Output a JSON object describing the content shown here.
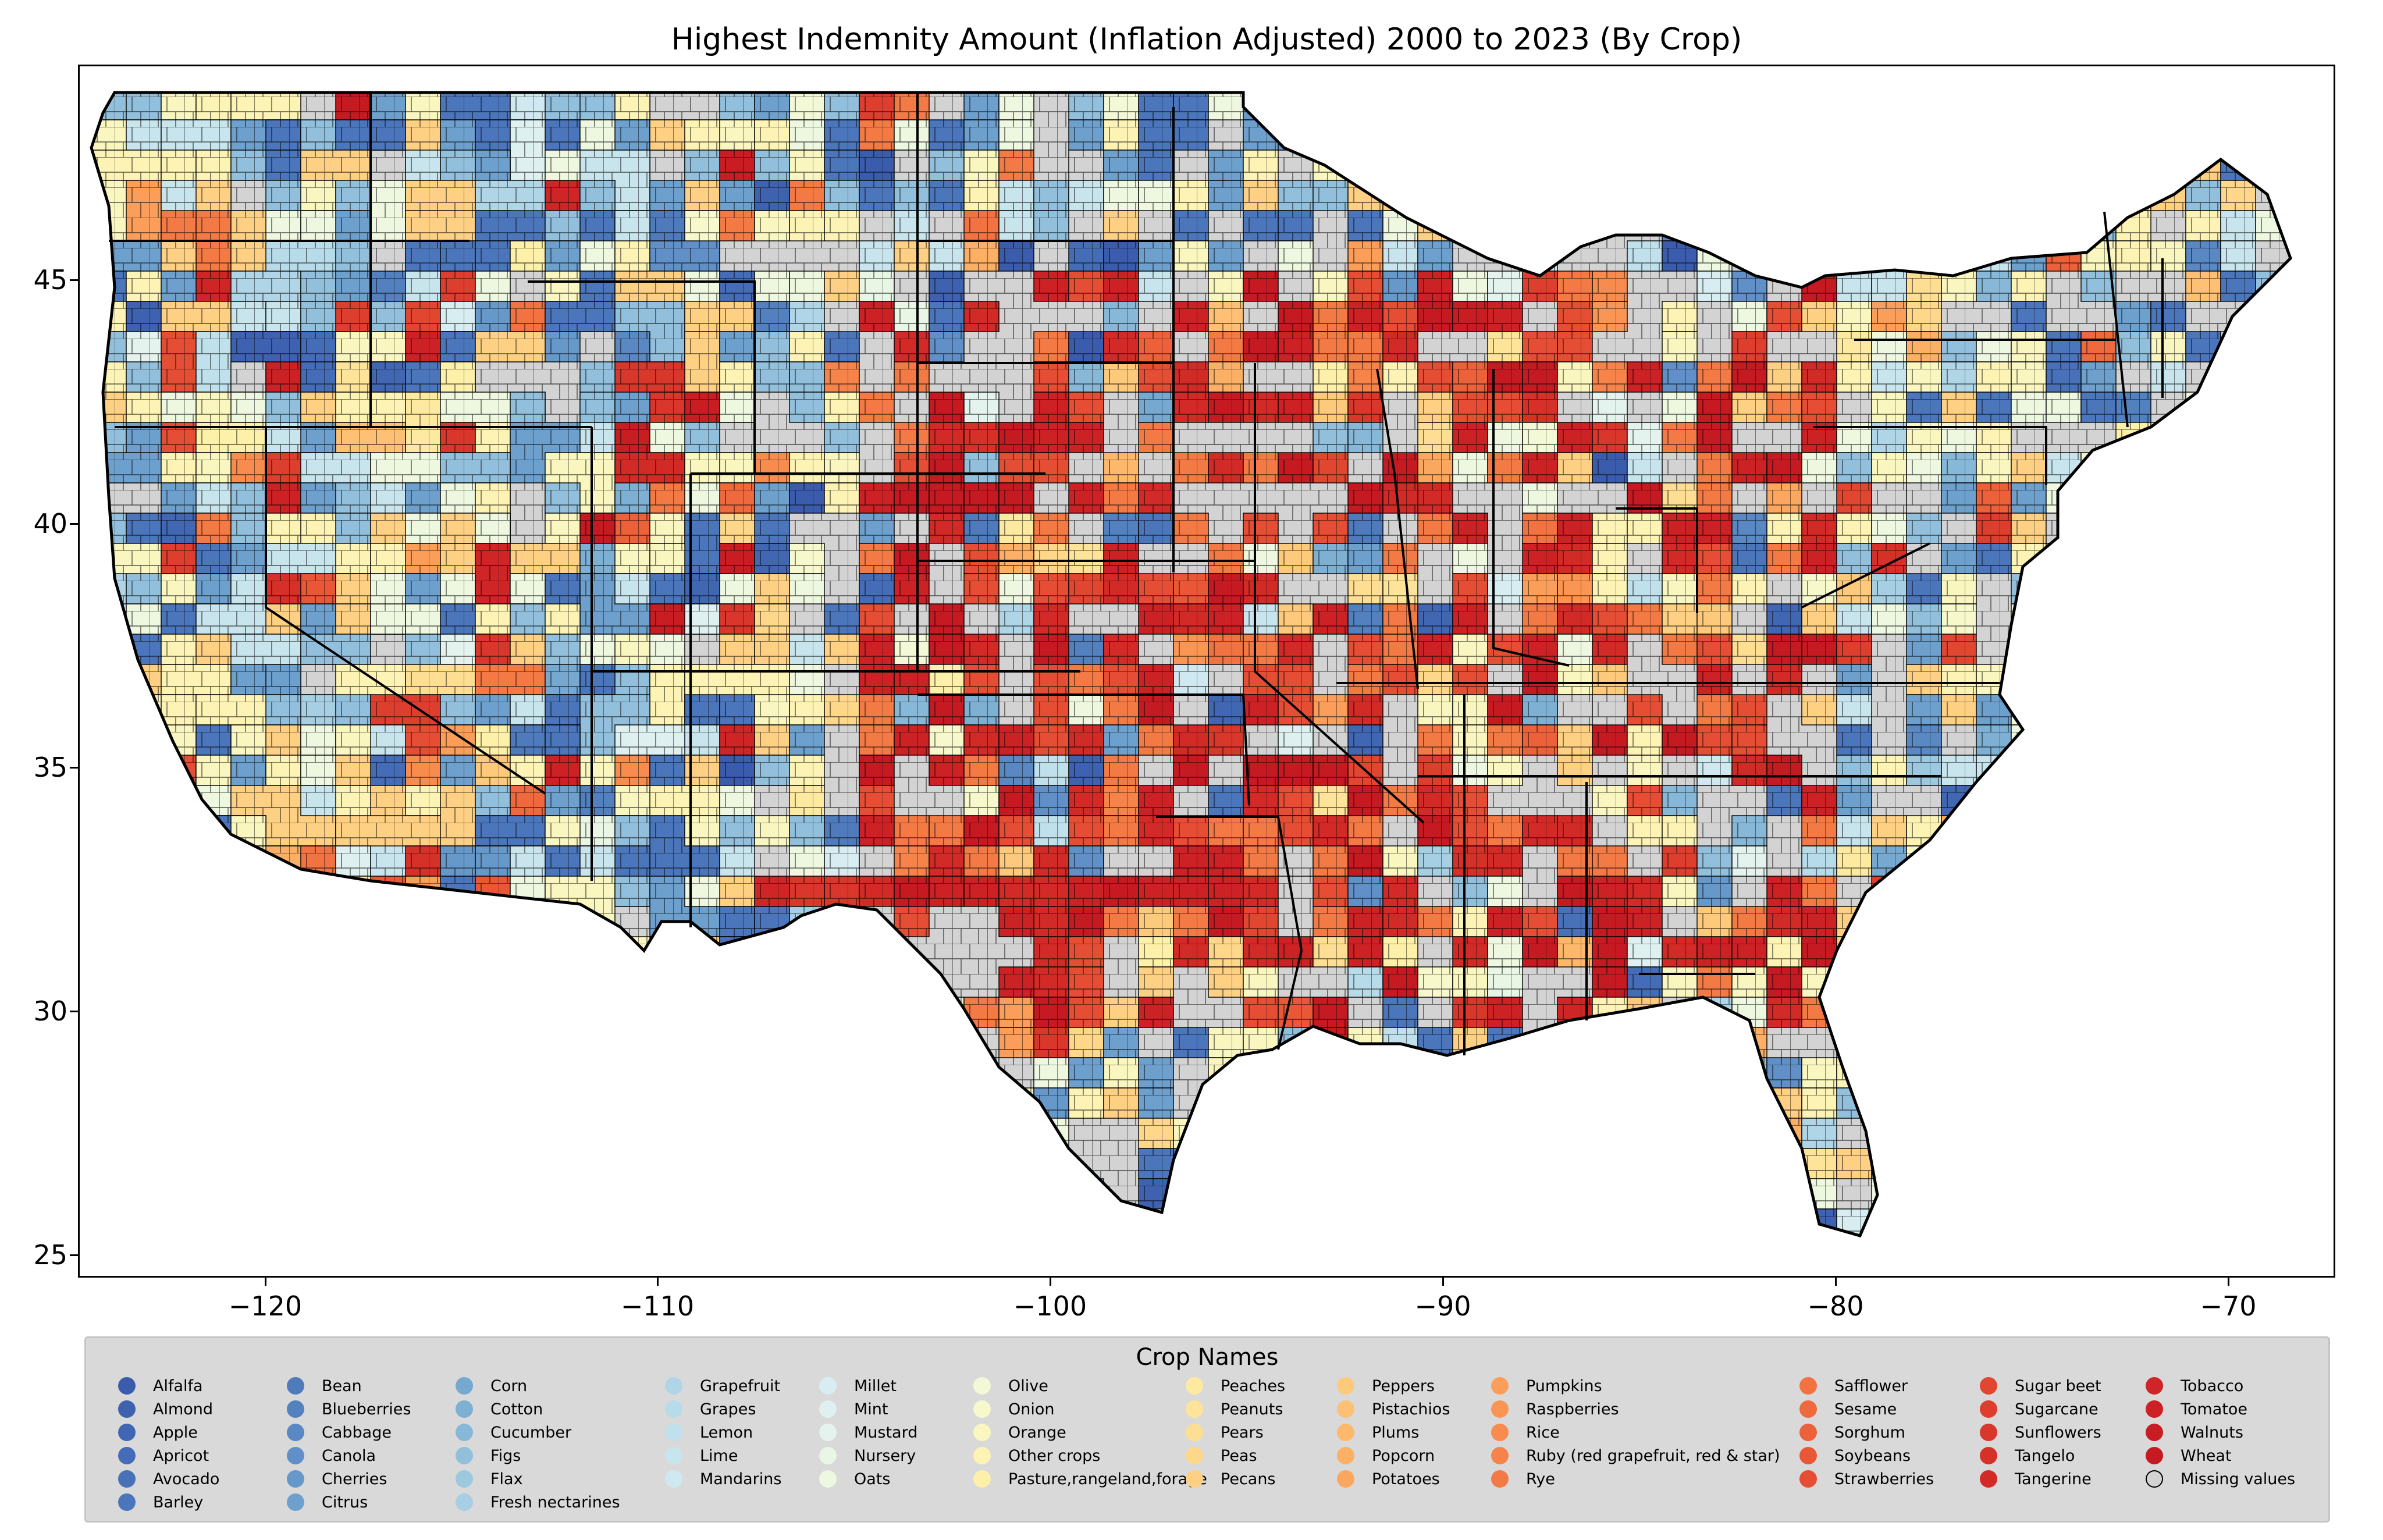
{
  "title": "Highest Indemnity Amount  (Inflation Adjusted) 2000 to 2023 (By Crop)",
  "x_ticks": [
    "−120",
    "−110",
    "−100",
    "−90",
    "−80",
    "−70"
  ],
  "y_ticks": [
    "25",
    "30",
    "35",
    "40",
    "45"
  ],
  "legend": {
    "title": "Crop Names",
    "columns": [
      [
        "Alfalfa",
        "Almond",
        "Apple",
        "Apricot",
        "Avocado",
        "Barley"
      ],
      [
        "Bean",
        "Blueberries",
        "Cabbage",
        "Canola",
        "Cherries",
        "Citrus"
      ],
      [
        "Corn",
        "Cotton",
        "Cucumber",
        "Figs",
        "Flax",
        "Fresh nectarines"
      ],
      [
        "Grapefruit",
        "Grapes",
        "Lemon",
        "Lime",
        "Mandarins"
      ],
      [
        "Millet",
        "Mint",
        "Mustard",
        "Nursery",
        "Oats"
      ],
      [
        "Olive",
        "Onion",
        "Orange",
        "Other crops",
        "Pasture,rangeland,forage"
      ],
      [
        "Peaches",
        "Peanuts",
        "Pears",
        "Peas",
        "Pecans"
      ],
      [
        "Peppers",
        "Pistachios",
        "Plums",
        "Popcorn",
        "Potatoes"
      ],
      [
        "Pumpkins",
        "Raspberries",
        "Rice",
        "Ruby (red grapefruit, red & star)",
        "Rye"
      ],
      [
        "Safflower",
        "Sesame",
        "Sorghum",
        "Soybeans",
        "Strawberries"
      ],
      [
        "Sugar beet",
        "Sugarcane",
        "Sunflowers",
        "Tangelo",
        "Tangerine"
      ],
      [
        "Tobacco",
        "Tomatoe",
        "Walnuts",
        "Wheat",
        "Missing values"
      ]
    ],
    "colors": [
      [
        "#3b5cad",
        "#3e62b0",
        "#4167b3",
        "#456cb6",
        "#4871b8",
        "#4b76bb"
      ],
      [
        "#4f7bbd",
        "#5381c0",
        "#5a88c3",
        "#6090c7",
        "#6698ca",
        "#6ea0cd"
      ],
      [
        "#76a8d0",
        "#7eb0d4",
        "#88b8d8",
        "#92c0dc",
        "#9cc8e0",
        "#a6cfe3"
      ],
      [
        "#afd5e6",
        "#b8dbe9",
        "#c0e0ec",
        "#c8e5ee",
        "#d0e9f0"
      ],
      [
        "#d8edf1",
        "#def0f0",
        "#e4f3ed",
        "#e9f5e5",
        "#eef7df"
      ],
      [
        "#f3f8d6",
        "#f7f8cb",
        "#faf6bf",
        "#fcf3b4",
        "#fdf0a8"
      ],
      [
        "#fdeaa0",
        "#fee499",
        "#fede92",
        "#fed78a",
        "#fed083"
      ],
      [
        "#fdc97b",
        "#fdc074",
        "#fdb86c",
        "#fcb066",
        "#fca75f"
      ],
      [
        "#fb9e59",
        "#fa9553",
        "#f88c4e",
        "#f68349",
        "#f47a45"
      ],
      [
        "#f27242",
        "#ef693e",
        "#ec603a",
        "#e95737",
        "#e54e34"
      ],
      [
        "#e14631",
        "#dd3e2e",
        "#d9372b",
        "#d53129",
        "#d22a27"
      ],
      [
        "#cf2526",
        "#cc2125",
        "#c91d24",
        "#c61a23",
        "#d3d3d3"
      ]
    ]
  }
}
